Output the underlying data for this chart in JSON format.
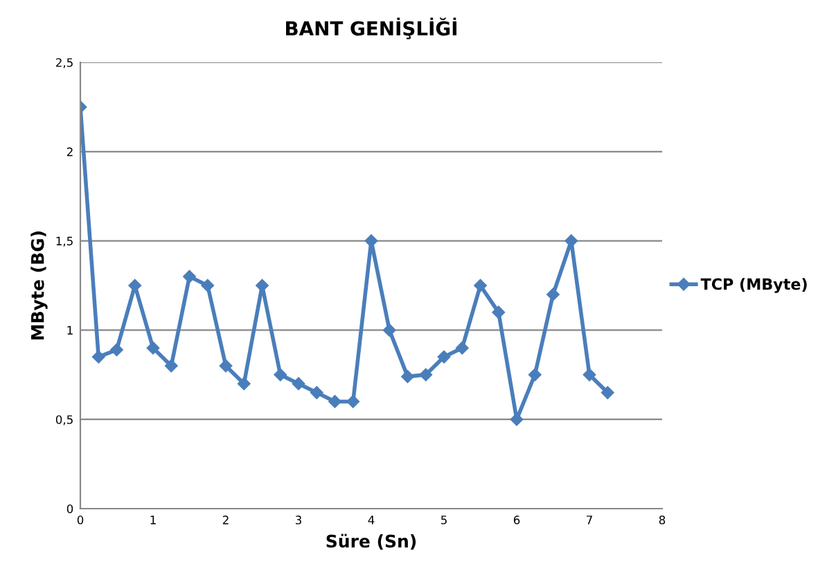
{
  "chart_data": {
    "type": "line",
    "title": "BANT GENİŞLİĞİ",
    "xlabel": "Süre (Sn)",
    "ylabel": "MByte (BG)",
    "x": [
      0,
      0.25,
      0.5,
      0.75,
      1,
      1.25,
      1.5,
      1.75,
      2,
      2.25,
      2.5,
      2.75,
      3,
      3.25,
      3.5,
      3.75,
      4,
      4.25,
      4.5,
      4.75,
      5,
      5.25,
      5.5,
      5.75,
      6,
      6.25,
      6.5,
      6.75,
      7,
      7.25
    ],
    "series": [
      {
        "name": "TCP (MByte)",
        "color": "#4a7ebb",
        "values": [
          2.25,
          0.85,
          0.89,
          1.25,
          0.9,
          0.8,
          1.3,
          1.25,
          0.8,
          0.7,
          1.25,
          0.75,
          0.7,
          0.65,
          0.6,
          0.6,
          1.5,
          1.0,
          0.74,
          0.75,
          0.85,
          0.9,
          1.25,
          1.1,
          0.5,
          0.75,
          1.2,
          1.5,
          0.75,
          0.65
        ]
      }
    ],
    "xlim": [
      0,
      8
    ],
    "xticks": [
      0,
      1,
      2,
      3,
      4,
      5,
      6,
      7,
      8
    ],
    "ylim": [
      0,
      2.5
    ],
    "yticks": [
      0,
      {
        "value": 0.5,
        "label": "0,5"
      },
      1,
      {
        "value": 1.5,
        "label": "1,5"
      },
      2,
      {
        "value": 2.5,
        "label": "2,5"
      }
    ],
    "grid": "y",
    "legend": "right",
    "marker": "diamond",
    "line_style": "solid"
  }
}
